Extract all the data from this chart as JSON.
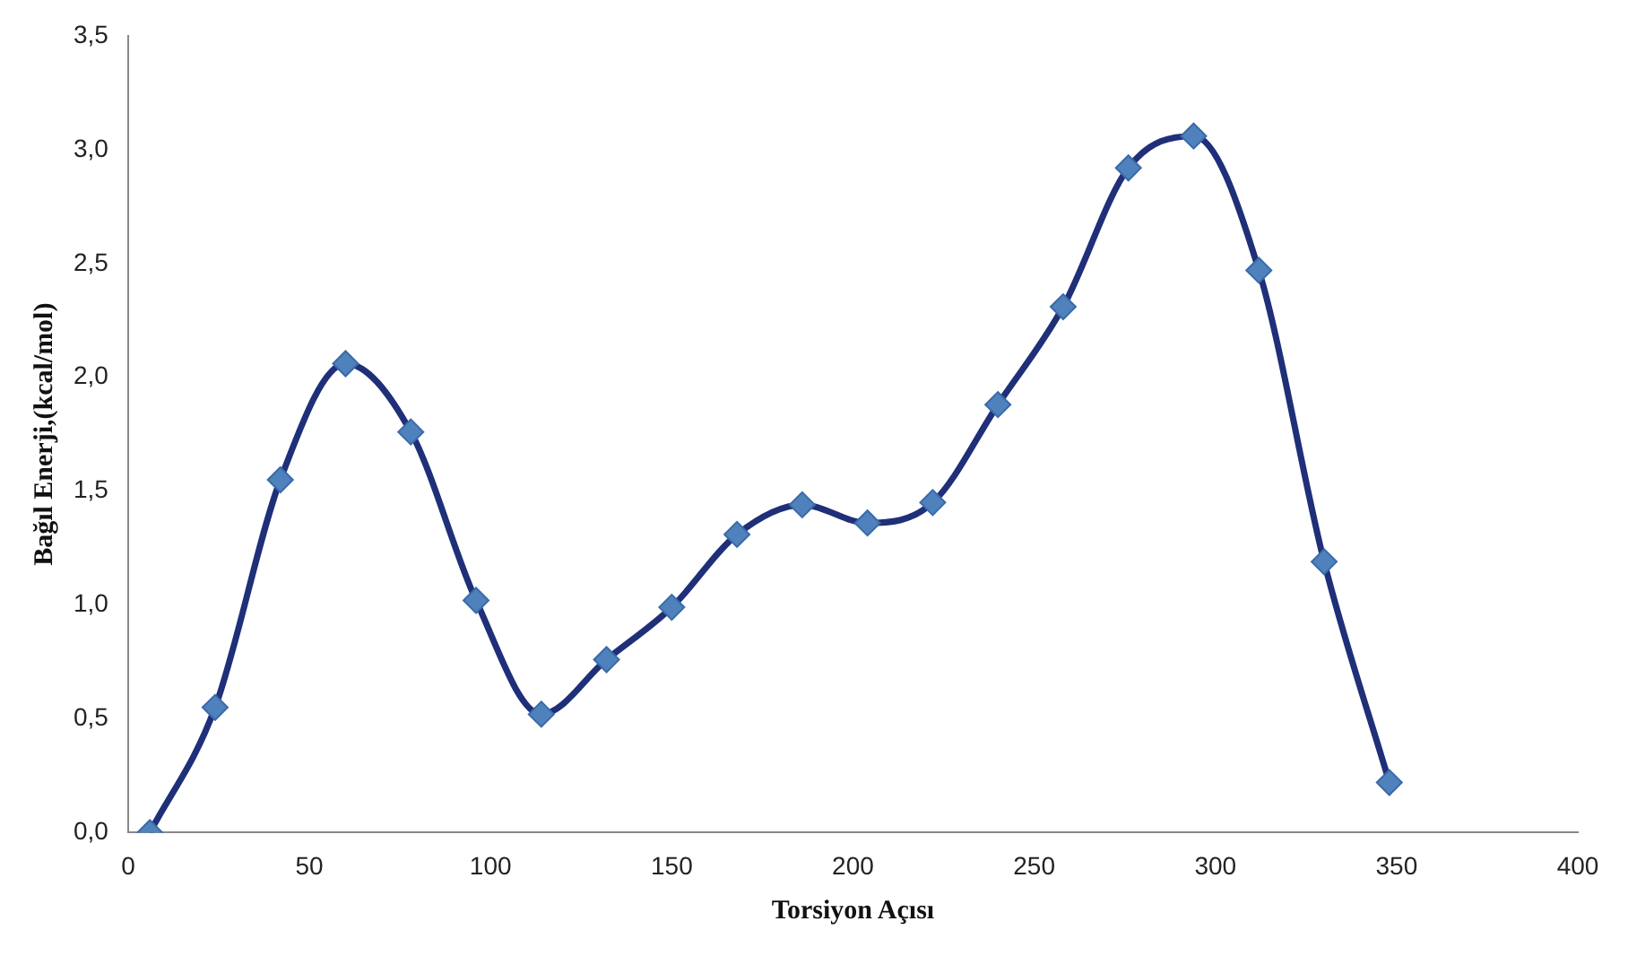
{
  "chart_data": {
    "type": "line",
    "xlabel": "Torsiyon Açısı",
    "ylabel": "Bağıl Enerji,(kcal/mol)",
    "x": [
      6,
      24,
      42,
      60,
      78,
      96,
      114,
      132,
      150,
      168,
      186,
      204,
      222,
      240,
      258,
      276,
      294,
      312,
      330,
      348
    ],
    "series": [
      {
        "color": "#1f2f78",
        "values": [
          0,
          0.55,
          1.55,
          2.06,
          1.76,
          1.02,
          0.52,
          0.76,
          0.99,
          1.31,
          1.44,
          1.36,
          1.45,
          1.88,
          2.31,
          2.92,
          3.06,
          2.47,
          1.19,
          0.22
        ]
      }
    ],
    "xlim": [
      0,
      400
    ],
    "xticks": [
      0,
      50,
      100,
      150,
      200,
      250,
      300,
      350,
      400
    ],
    "ylim": [
      0,
      3.5
    ],
    "yticks": [
      {
        "value": 0,
        "label": "0,0"
      },
      {
        "value": 0.5,
        "label": "0,5"
      },
      {
        "value": 1,
        "label": "1,0"
      },
      {
        "value": 1.5,
        "label": "1,5"
      },
      {
        "value": 2,
        "label": "2,0"
      },
      {
        "value": 2.5,
        "label": "2,5"
      },
      {
        "value": 3,
        "label": "3,0"
      },
      {
        "value": 3.5,
        "label": "3,5"
      }
    ],
    "grid": false,
    "legend": false,
    "marker": "diamond",
    "line_style": "solid"
  }
}
